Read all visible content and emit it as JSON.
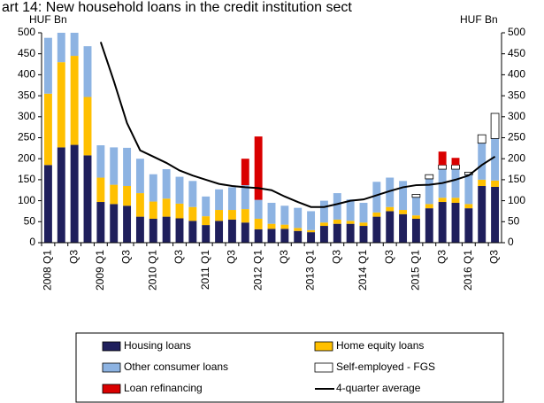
{
  "chart_data": {
    "type": "bar",
    "stacked": true,
    "title": "art 14: New household loans in the credit institution sect",
    "y_label": "HUF Bn",
    "y2_label": "HUF Bn",
    "categories": [
      "2008 Q1",
      null,
      "Q3",
      null,
      "2009 Q1",
      null,
      "Q3",
      null,
      "2010 Q1",
      null,
      "Q3",
      null,
      "2011 Q1",
      null,
      "Q3",
      null,
      "2012 Q1",
      null,
      "Q3",
      null,
      "2013 Q1",
      null,
      "Q3",
      null,
      "2014 Q1",
      null,
      "Q3",
      null,
      "2015 Q1",
      null,
      "Q3",
      null,
      "2016 Q1",
      null,
      "Q3"
    ],
    "series": [
      {
        "name": "Housing loans",
        "color": "#1f1f5c",
        "values": [
          185,
          227,
          233,
          208,
          97,
          92,
          88,
          62,
          57,
          62,
          58,
          52,
          42,
          52,
          55,
          48,
          32,
          33,
          33,
          28,
          25,
          40,
          45,
          45,
          40,
          62,
          75,
          68,
          57,
          82,
          97,
          95,
          82,
          135,
          133
        ]
      },
      {
        "name": "Home equity loans",
        "color": "#ffc000",
        "values": [
          170,
          203,
          212,
          139,
          58,
          46,
          47,
          56,
          41,
          43,
          35,
          33,
          21,
          26,
          23,
          32,
          25,
          12,
          10,
          7,
          5,
          8,
          10,
          7,
          8,
          10,
          10,
          10,
          8,
          10,
          10,
          12,
          10,
          15,
          15
        ]
      },
      {
        "name": "Other consumer loans",
        "color": "#8db3e2",
        "values": [
          133,
          70,
          60,
          121,
          77,
          89,
          91,
          82,
          65,
          70,
          64,
          62,
          47,
          49,
          54,
          57,
          45,
          50,
          45,
          48,
          45,
          52,
          63,
          51,
          47,
          73,
          70,
          69,
          43,
          60,
          68,
          68,
          70,
          87,
          100
        ]
      },
      {
        "name": "Self-employed - FGS",
        "color": "#ffffff",
        "values": [
          0,
          0,
          0,
          0,
          0,
          0,
          0,
          0,
          0,
          0,
          0,
          0,
          0,
          0,
          0,
          0,
          0,
          0,
          0,
          0,
          0,
          0,
          0,
          0,
          0,
          0,
          0,
          0,
          7,
          10,
          10,
          10,
          6,
          20,
          60
        ]
      },
      {
        "name": "Loan refinancing",
        "color": "#d90000",
        "values": [
          0,
          0,
          0,
          0,
          0,
          0,
          0,
          0,
          0,
          0,
          0,
          0,
          0,
          0,
          0,
          63,
          151,
          0,
          0,
          0,
          0,
          0,
          0,
          0,
          0,
          0,
          0,
          0,
          0,
          0,
          32,
          17,
          0,
          0,
          0
        ]
      }
    ],
    "lines": [
      {
        "name": "4-quarter average",
        "color": "#000000",
        "values": [
          null,
          null,
          null,
          null,
          478,
          385,
          285,
          220,
          205,
          190,
          172,
          160,
          150,
          140,
          135,
          132,
          130,
          125,
          110,
          97,
          85,
          85,
          92,
          100,
          103,
          113,
          123,
          132,
          137,
          138,
          142,
          150,
          160,
          185,
          205
        ]
      }
    ],
    "ylim": [
      0,
      500
    ],
    "yticks": [
      0,
      50,
      100,
      150,
      200,
      250,
      300,
      350,
      400,
      450,
      500
    ],
    "y2lim": [
      0,
      500
    ],
    "y2ticks": [
      0,
      50,
      100,
      150,
      200,
      250,
      300,
      350,
      400,
      450,
      500
    ]
  }
}
